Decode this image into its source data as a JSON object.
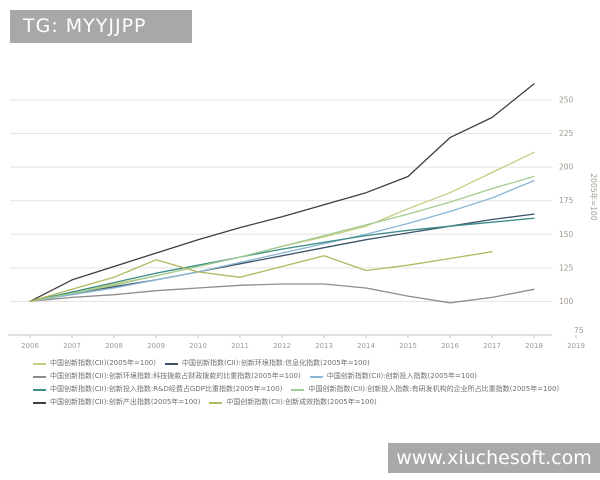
{
  "watermarks": {
    "telegram": "TG: MYYJJPP",
    "site": "www.xiuchesoft.com"
  },
  "chart_data": {
    "type": "line",
    "title": "",
    "x_labels": [
      "2006",
      "2007",
      "2008",
      "2009",
      "2010",
      "2011",
      "2012",
      "2013",
      "2014",
      "2015",
      "2016",
      "2017",
      "2018",
      "2019"
    ],
    "x_start_year": 2006,
    "ylim": [
      75,
      275
    ],
    "yticks": [
      100,
      125,
      150,
      175,
      200,
      225,
      250
    ],
    "y_corner_label": "75",
    "y_axis_note": "2005年=100",
    "grid": true,
    "legend_position": "bottom",
    "axis_color": "#c9c6c2",
    "grid_color": "#e5e3e0",
    "tick_label_color": "#a29a90",
    "series": [
      {
        "name": "中国创新指数(CII)(2005年=100)",
        "color": "#c8cc83",
        "values": [
          100,
          107,
          113,
          119,
          126,
          133,
          141,
          148,
          156,
          169,
          181,
          196,
          211
        ]
      },
      {
        "name": "中国创新指数(CII):创新环境指数:信息化指数(2005年=100)",
        "color": "#3e5468",
        "values": [
          100,
          106,
          111,
          116,
          122,
          128,
          134,
          140,
          146,
          151,
          156,
          161,
          165
        ]
      },
      {
        "name": "中国创新指数(CII):创新环境指数:科技拨款占财政拨款的比重指数(2005年=100)",
        "color": "#8f8c8a",
        "values": [
          100,
          103,
          105,
          108,
          110,
          112,
          113,
          113,
          110,
          104,
          99,
          103,
          109
        ]
      },
      {
        "name": "中国创新指数(CII):创新投入指数(2005年=100)",
        "color": "#8ab6d4",
        "values": [
          100,
          105,
          110,
          116,
          122,
          129,
          136,
          143,
          150,
          158,
          167,
          177,
          190
        ]
      },
      {
        "name": "中国创新指数(CII):创新投入指数:R&D经费占GDP比重指数(2005年=100)",
        "color": "#3f8e89",
        "values": [
          100,
          107,
          114,
          121,
          127,
          133,
          139,
          144,
          149,
          153,
          156,
          159,
          162
        ]
      },
      {
        "name": "中国创新指数(CII):创新投入指数:有研发机构的企业所占比重指数(2005年=100)",
        "color": "#a3cc92",
        "values": [
          100,
          106,
          112,
          119,
          126,
          133,
          141,
          149,
          157,
          165,
          174,
          184,
          193
        ]
      },
      {
        "name": "中国创新指数(CII):创新产出指数(2005年=100)",
        "color": "#433d3c",
        "values": [
          100,
          116,
          126,
          136,
          146,
          155,
          163,
          172,
          181,
          193,
          222,
          237,
          262
        ]
      },
      {
        "name": "中国创新指数(CII):创新成效指数(2005年=100)",
        "color": "#b3b75e",
        "values": [
          100,
          109,
          118,
          131,
          122,
          118,
          126,
          134,
          123,
          127,
          132,
          137
        ]
      }
    ],
    "legend_rows": [
      [
        0,
        1
      ],
      [
        2,
        3
      ],
      [
        4,
        5
      ],
      [
        6,
        7
      ]
    ]
  }
}
